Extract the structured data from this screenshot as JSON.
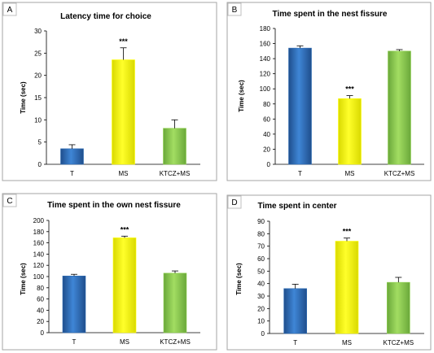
{
  "chart_data": [
    {
      "type": "bar",
      "panel_label": "A",
      "title": "Latency time for choice",
      "xlabel": "",
      "ylabel": "Time (sec)",
      "categories": [
        "T",
        "MS",
        "KTCZ+MS"
      ],
      "values": [
        3.5,
        23.5,
        8.1
      ],
      "errors": [
        0.9,
        2.7,
        1.9
      ],
      "significance": [
        "",
        "***",
        ""
      ],
      "colors": [
        "#2f6db5",
        "#ffff00",
        "#8fd14f"
      ],
      "ylim": [
        0,
        30
      ],
      "yticks": [
        0,
        5,
        10,
        15,
        20,
        25,
        30
      ],
      "grid": false
    },
    {
      "type": "bar",
      "panel_label": "B",
      "title": "Time spent in the nest fissure",
      "xlabel": "",
      "ylabel": "Time (sec)",
      "categories": [
        "T",
        "MS",
        "KTCZ+MS"
      ],
      "values": [
        154,
        87,
        150
      ],
      "errors": [
        3,
        4,
        2
      ],
      "significance": [
        "",
        "***",
        ""
      ],
      "colors": [
        "#2f6db5",
        "#ffff00",
        "#8fd14f"
      ],
      "ylim": [
        0,
        180
      ],
      "yticks": [
        0,
        20,
        40,
        60,
        80,
        100,
        120,
        140,
        160,
        180
      ],
      "grid": false
    },
    {
      "type": "bar",
      "panel_label": "C",
      "title": "Time spent in the own nest fissure",
      "xlabel": "",
      "ylabel": "Time (sec)",
      "categories": [
        "T",
        "MS",
        "KTCZ+MS"
      ],
      "values": [
        101,
        169,
        106
      ],
      "errors": [
        3,
        3,
        4
      ],
      "significance": [
        "",
        "***",
        ""
      ],
      "colors": [
        "#2f6db5",
        "#ffff00",
        "#8fd14f"
      ],
      "ylim": [
        0,
        200
      ],
      "yticks": [
        0,
        20,
        40,
        60,
        80,
        100,
        120,
        140,
        160,
        180,
        200
      ],
      "grid": false
    },
    {
      "type": "bar",
      "panel_label": "D",
      "title": "Time spent in center",
      "xlabel": "",
      "ylabel": "Time (sec)",
      "categories": [
        "T",
        "MS",
        "KTCZ+MS"
      ],
      "values": [
        36,
        74,
        41
      ],
      "errors": [
        3.5,
        2.5,
        4
      ],
      "significance": [
        "",
        "***",
        ""
      ],
      "colors": [
        "#2f6db5",
        "#ffff00",
        "#8fd14f"
      ],
      "ylim": [
        0,
        90
      ],
      "yticks": [
        0,
        10,
        20,
        30,
        40,
        50,
        60,
        70,
        80,
        90
      ],
      "grid": false
    }
  ]
}
